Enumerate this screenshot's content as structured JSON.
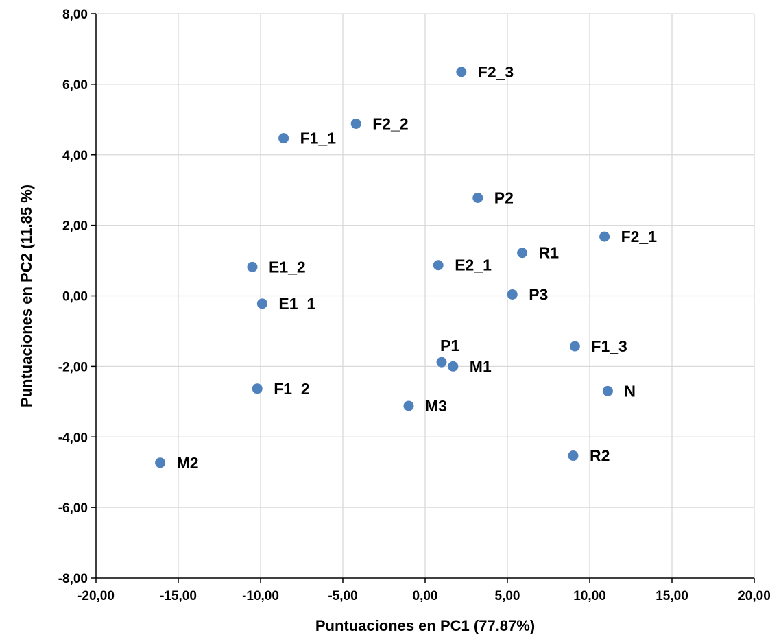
{
  "chart_data": {
    "type": "scatter",
    "xlabel": "Puntuaciones en PC1 (77.87%)",
    "ylabel": "Puntuaciones en PC2 (11.85 %)",
    "xlim": [
      -20,
      20
    ],
    "ylim": [
      -8,
      8
    ],
    "x_ticks": [
      "-20,00",
      "-15,00",
      "-10,00",
      "-5,00",
      "0,00",
      "5,00",
      "10,00",
      "15,00",
      "20,00"
    ],
    "y_ticks": [
      "-8,00",
      "-6,00",
      "-4,00",
      "-2,00",
      "0,00",
      "2,00",
      "4,00",
      "6,00",
      "8,00"
    ],
    "grid": true,
    "marker_color": "#4f81bd",
    "points": [
      {
        "label": "F2_3",
        "x": 2.2,
        "y": 6.35
      },
      {
        "label": "F2_2",
        "x": -4.2,
        "y": 4.88
      },
      {
        "label": "F1_1",
        "x": -8.6,
        "y": 4.47
      },
      {
        "label": "P2",
        "x": 3.2,
        "y": 2.78
      },
      {
        "label": "F2_1",
        "x": 10.9,
        "y": 1.68
      },
      {
        "label": "R1",
        "x": 5.9,
        "y": 1.22
      },
      {
        "label": "E1_2",
        "x": -10.5,
        "y": 0.82
      },
      {
        "label": "E2_1",
        "x": 0.8,
        "y": 0.87
      },
      {
        "label": "E1_1",
        "x": -9.9,
        "y": -0.22
      },
      {
        "label": "P3",
        "x": 5.3,
        "y": 0.04
      },
      {
        "label": "P1",
        "x": 1.0,
        "y": -1.88
      },
      {
        "label": "M1",
        "x": 1.7,
        "y": -2.0
      },
      {
        "label": "F1_3",
        "x": 9.1,
        "y": -1.43
      },
      {
        "label": "F1_2",
        "x": -10.2,
        "y": -2.63
      },
      {
        "label": "M3",
        "x": -1.0,
        "y": -3.12
      },
      {
        "label": "N",
        "x": 11.1,
        "y": -2.7
      },
      {
        "label": "R2",
        "x": 9.0,
        "y": -4.53
      },
      {
        "label": "M2",
        "x": -16.1,
        "y": -4.73
      }
    ]
  }
}
